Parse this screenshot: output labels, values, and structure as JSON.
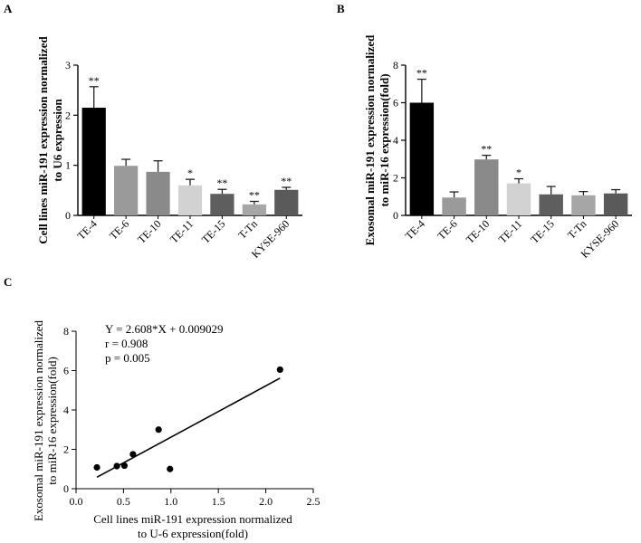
{
  "chart_data": [
    {
      "panel": "A",
      "type": "bar",
      "categories": [
        "TE-4",
        "TE-6",
        "TE-10",
        "TE-11",
        "TE-15",
        "T-Tn",
        "KYSE-960"
      ],
      "values": [
        2.15,
        0.99,
        0.87,
        0.6,
        0.43,
        0.22,
        0.51
      ],
      "errors": [
        0.42,
        0.13,
        0.22,
        0.12,
        0.09,
        0.06,
        0.05
      ],
      "significance": [
        "**",
        "",
        "",
        "*",
        "**",
        "**",
        "**"
      ],
      "colors": [
        "#000000",
        "#9a9a9a",
        "#8a8a8a",
        "#d2d2d2",
        "#5e5e5e",
        "#a6a6a6",
        "#5a5a5a"
      ],
      "ylabel_lines": [
        "Cell lines miR-191 expression normalized",
        "to U6 expression"
      ],
      "ylim": [
        0,
        3
      ],
      "yticks": [
        "0",
        "1",
        "2",
        "3"
      ]
    },
    {
      "panel": "B",
      "type": "bar",
      "categories": [
        "TE-4",
        "TE-6",
        "TE-10",
        "TE-11",
        "TE-15",
        "T-Tn",
        "KYSE-960"
      ],
      "values": [
        6.0,
        0.95,
        2.98,
        1.7,
        1.12,
        1.07,
        1.17
      ],
      "errors": [
        1.25,
        0.3,
        0.22,
        0.25,
        0.42,
        0.2,
        0.2
      ],
      "significance": [
        "**",
        "",
        "**",
        "*",
        "",
        "",
        ""
      ],
      "colors": [
        "#000000",
        "#9a9a9a",
        "#8a8a8a",
        "#d2d2d2",
        "#5e5e5e",
        "#a6a6a6",
        "#5a5a5a"
      ],
      "ylabel_lines": [
        "Exosomal miR-191 expression normalized",
        "to miR-16 expression(fold)"
      ],
      "ylim": [
        0,
        8
      ],
      "yticks": [
        "0",
        "2",
        "4",
        "6",
        "8"
      ]
    },
    {
      "panel": "C",
      "type": "scatter",
      "x": [
        2.15,
        0.99,
        0.87,
        0.6,
        0.43,
        0.22,
        0.51
      ],
      "y": [
        6.05,
        1.0,
        3.0,
        1.75,
        1.15,
        1.08,
        1.17
      ],
      "fit": {
        "slope": 2.608,
        "intercept": 0.009029,
        "x_range": [
          0.22,
          2.15
        ]
      },
      "annotations": [
        "Y = 2.608*X + 0.009029",
        "r  = 0.908",
        "p = 0.005"
      ],
      "xlabel_lines": [
        "Cell lines miR-191 expression normalized",
        "to U-6 expression(fold)"
      ],
      "ylabel_lines": [
        "Exosomal miR-191 expression normalized",
        "to miR-16 expression(fold)"
      ],
      "xlim": [
        0,
        2.5
      ],
      "ylim": [
        0,
        8
      ],
      "xticks": [
        "0.0",
        "0.5",
        "1.0",
        "1.5",
        "2.0",
        "2.5"
      ],
      "yticks": [
        "0",
        "2",
        "4",
        "6",
        "8"
      ]
    }
  ]
}
